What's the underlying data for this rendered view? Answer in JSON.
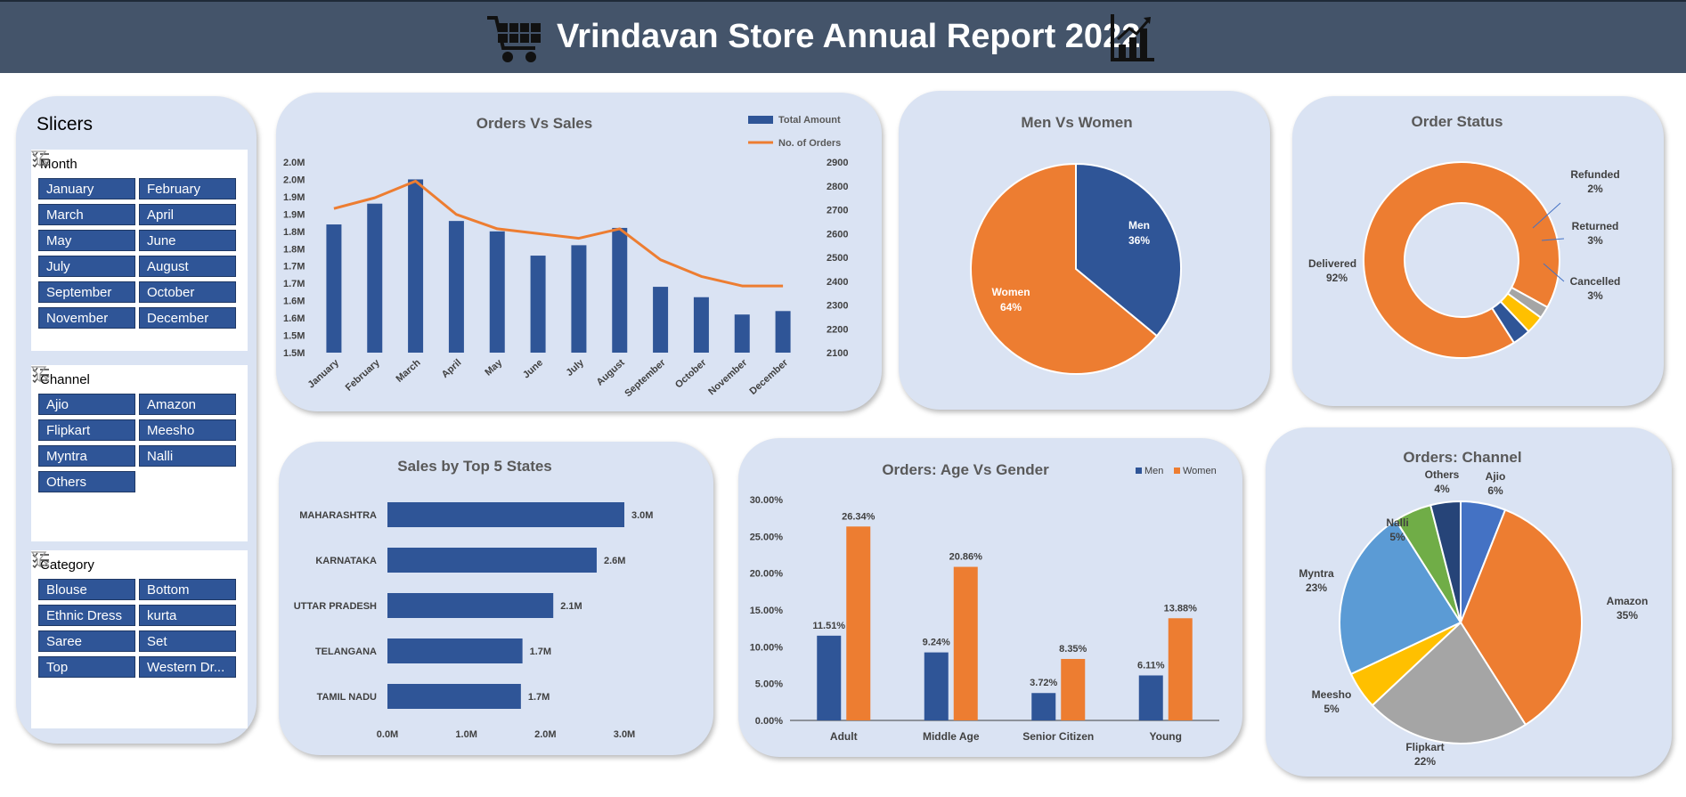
{
  "header": {
    "title": "Vrindavan Store Annual Report 2022",
    "left_icon": "shopping-cart-icon",
    "right_icon": "bar-chart-icon"
  },
  "slicers": {
    "title": "Slicers",
    "groups": [
      {
        "name": "Month",
        "items": [
          "January",
          "February",
          "March",
          "April",
          "May",
          "June",
          "July",
          "August",
          "September",
          "October",
          "November",
          "December"
        ]
      },
      {
        "name": "Channel",
        "items": [
          "Ajio",
          "Amazon",
          "Flipkart",
          "Meesho",
          "Myntra",
          "Nalli",
          "Others"
        ]
      },
      {
        "name": "Category",
        "items": [
          "Blouse",
          "Bottom",
          "Ethnic Dress",
          "kurta",
          "Saree",
          "Set",
          "Top",
          "Western Dr..."
        ]
      }
    ]
  },
  "chart_data": [
    {
      "type": "bar",
      "title": "Orders Vs Sales",
      "categories": [
        "January",
        "February",
        "March",
        "April",
        "May",
        "June",
        "July",
        "August",
        "September",
        "October",
        "November",
        "December"
      ],
      "series": [
        {
          "name": "Total Amount",
          "type": "bar",
          "axis": "left",
          "values": [
            1.82,
            1.88,
            1.95,
            1.83,
            1.8,
            1.73,
            1.76,
            1.81,
            1.64,
            1.61,
            1.56,
            1.57
          ],
          "color": "#2f5597"
        },
        {
          "name": "No. of Orders",
          "type": "line",
          "axis": "right",
          "values": [
            2705,
            2750,
            2820,
            2680,
            2620,
            2600,
            2580,
            2620,
            2490,
            2420,
            2380,
            2380
          ],
          "color": "#ed7d31"
        }
      ],
      "y_left_ticks": [
        "1.5M",
        "1.5M",
        "1.6M",
        "1.6M",
        "1.7M",
        "1.7M",
        "1.8M",
        "1.8M",
        "1.9M",
        "1.9M",
        "2.0M",
        "2.0M"
      ],
      "y_left_range": [
        1.45,
        2.0
      ],
      "y_right_ticks": [
        "2100",
        "2200",
        "2300",
        "2400",
        "2500",
        "2600",
        "2700",
        "2800",
        "2900"
      ],
      "y_right_range": [
        2100,
        2900
      ],
      "legend_position": "top-right"
    },
    {
      "type": "pie",
      "title": "Men Vs Women",
      "slices": [
        {
          "label": "Men",
          "value": 36,
          "value_label": "36%",
          "color": "#2f5597"
        },
        {
          "label": "Women",
          "value": 64,
          "value_label": "64%",
          "color": "#ed7d31"
        }
      ]
    },
    {
      "type": "pie",
      "subtype": "donut",
      "title": "Order Status",
      "slices": [
        {
          "label": "Delivered",
          "value": 92,
          "value_label": "92%",
          "color": "#ed7d31"
        },
        {
          "label": "Refunded",
          "value": 2,
          "value_label": "2%",
          "color": "#a5a5a5"
        },
        {
          "label": "Returned",
          "value": 3,
          "value_label": "3%",
          "color": "#ffc000"
        },
        {
          "label": "Cancelled",
          "value": 3,
          "value_label": "3%",
          "color": "#2f5597"
        }
      ]
    },
    {
      "type": "bar",
      "orientation": "horizontal",
      "title": "Sales by Top 5 States",
      "categories": [
        "MAHARASHTRA",
        "KARNATAKA",
        "UTTAR PRADESH",
        "TELANGANA",
        "TAMIL NADU"
      ],
      "values": [
        3.0,
        2.65,
        2.1,
        1.71,
        1.69
      ],
      "value_labels": [
        "3.0M",
        "2.6M",
        "2.1M",
        "1.7M",
        "1.7M"
      ],
      "x_ticks": [
        "0.0M",
        "1.0M",
        "2.0M",
        "3.0M"
      ],
      "xlim": [
        0,
        3.0
      ],
      "color": "#2f5597"
    },
    {
      "type": "bar",
      "title": "Orders: Age Vs Gender",
      "categories": [
        "Adult",
        "Middle Age",
        "Senior Citizen",
        "Young"
      ],
      "series": [
        {
          "name": "Men",
          "values": [
            11.51,
            9.24,
            3.72,
            6.11
          ],
          "value_labels": [
            "11.51%",
            "9.24%",
            "3.72%",
            "6.11%"
          ],
          "color": "#2f5597"
        },
        {
          "name": "Women",
          "values": [
            26.34,
            20.86,
            8.35,
            13.88
          ],
          "value_labels": [
            "26.34%",
            "20.86%",
            "8.35%",
            "13.88%"
          ],
          "color": "#ed7d31"
        }
      ],
      "y_ticks": [
        "0.00%",
        "5.00%",
        "10.00%",
        "15.00%",
        "20.00%",
        "25.00%",
        "30.00%"
      ],
      "ylim": [
        0,
        30
      ],
      "legend_position": "top-right"
    },
    {
      "type": "pie",
      "title": "Orders: Channel",
      "slices": [
        {
          "label": "Ajio",
          "value": 6,
          "value_label": "6%",
          "color": "#4472c4"
        },
        {
          "label": "Amazon",
          "value": 35,
          "value_label": "35%",
          "color": "#ed7d31"
        },
        {
          "label": "Flipkart",
          "value": 22,
          "value_label": "22%",
          "color": "#a5a5a5"
        },
        {
          "label": "Meesho",
          "value": 5,
          "value_label": "5%",
          "color": "#ffc000"
        },
        {
          "label": "Myntra",
          "value": 23,
          "value_label": "23%",
          "color": "#5b9bd5"
        },
        {
          "label": "Nalli",
          "value": 5,
          "value_label": "5%",
          "color": "#70ad47"
        },
        {
          "label": "Others",
          "value": 4,
          "value_label": "4%",
          "color": "#264478"
        }
      ]
    }
  ]
}
